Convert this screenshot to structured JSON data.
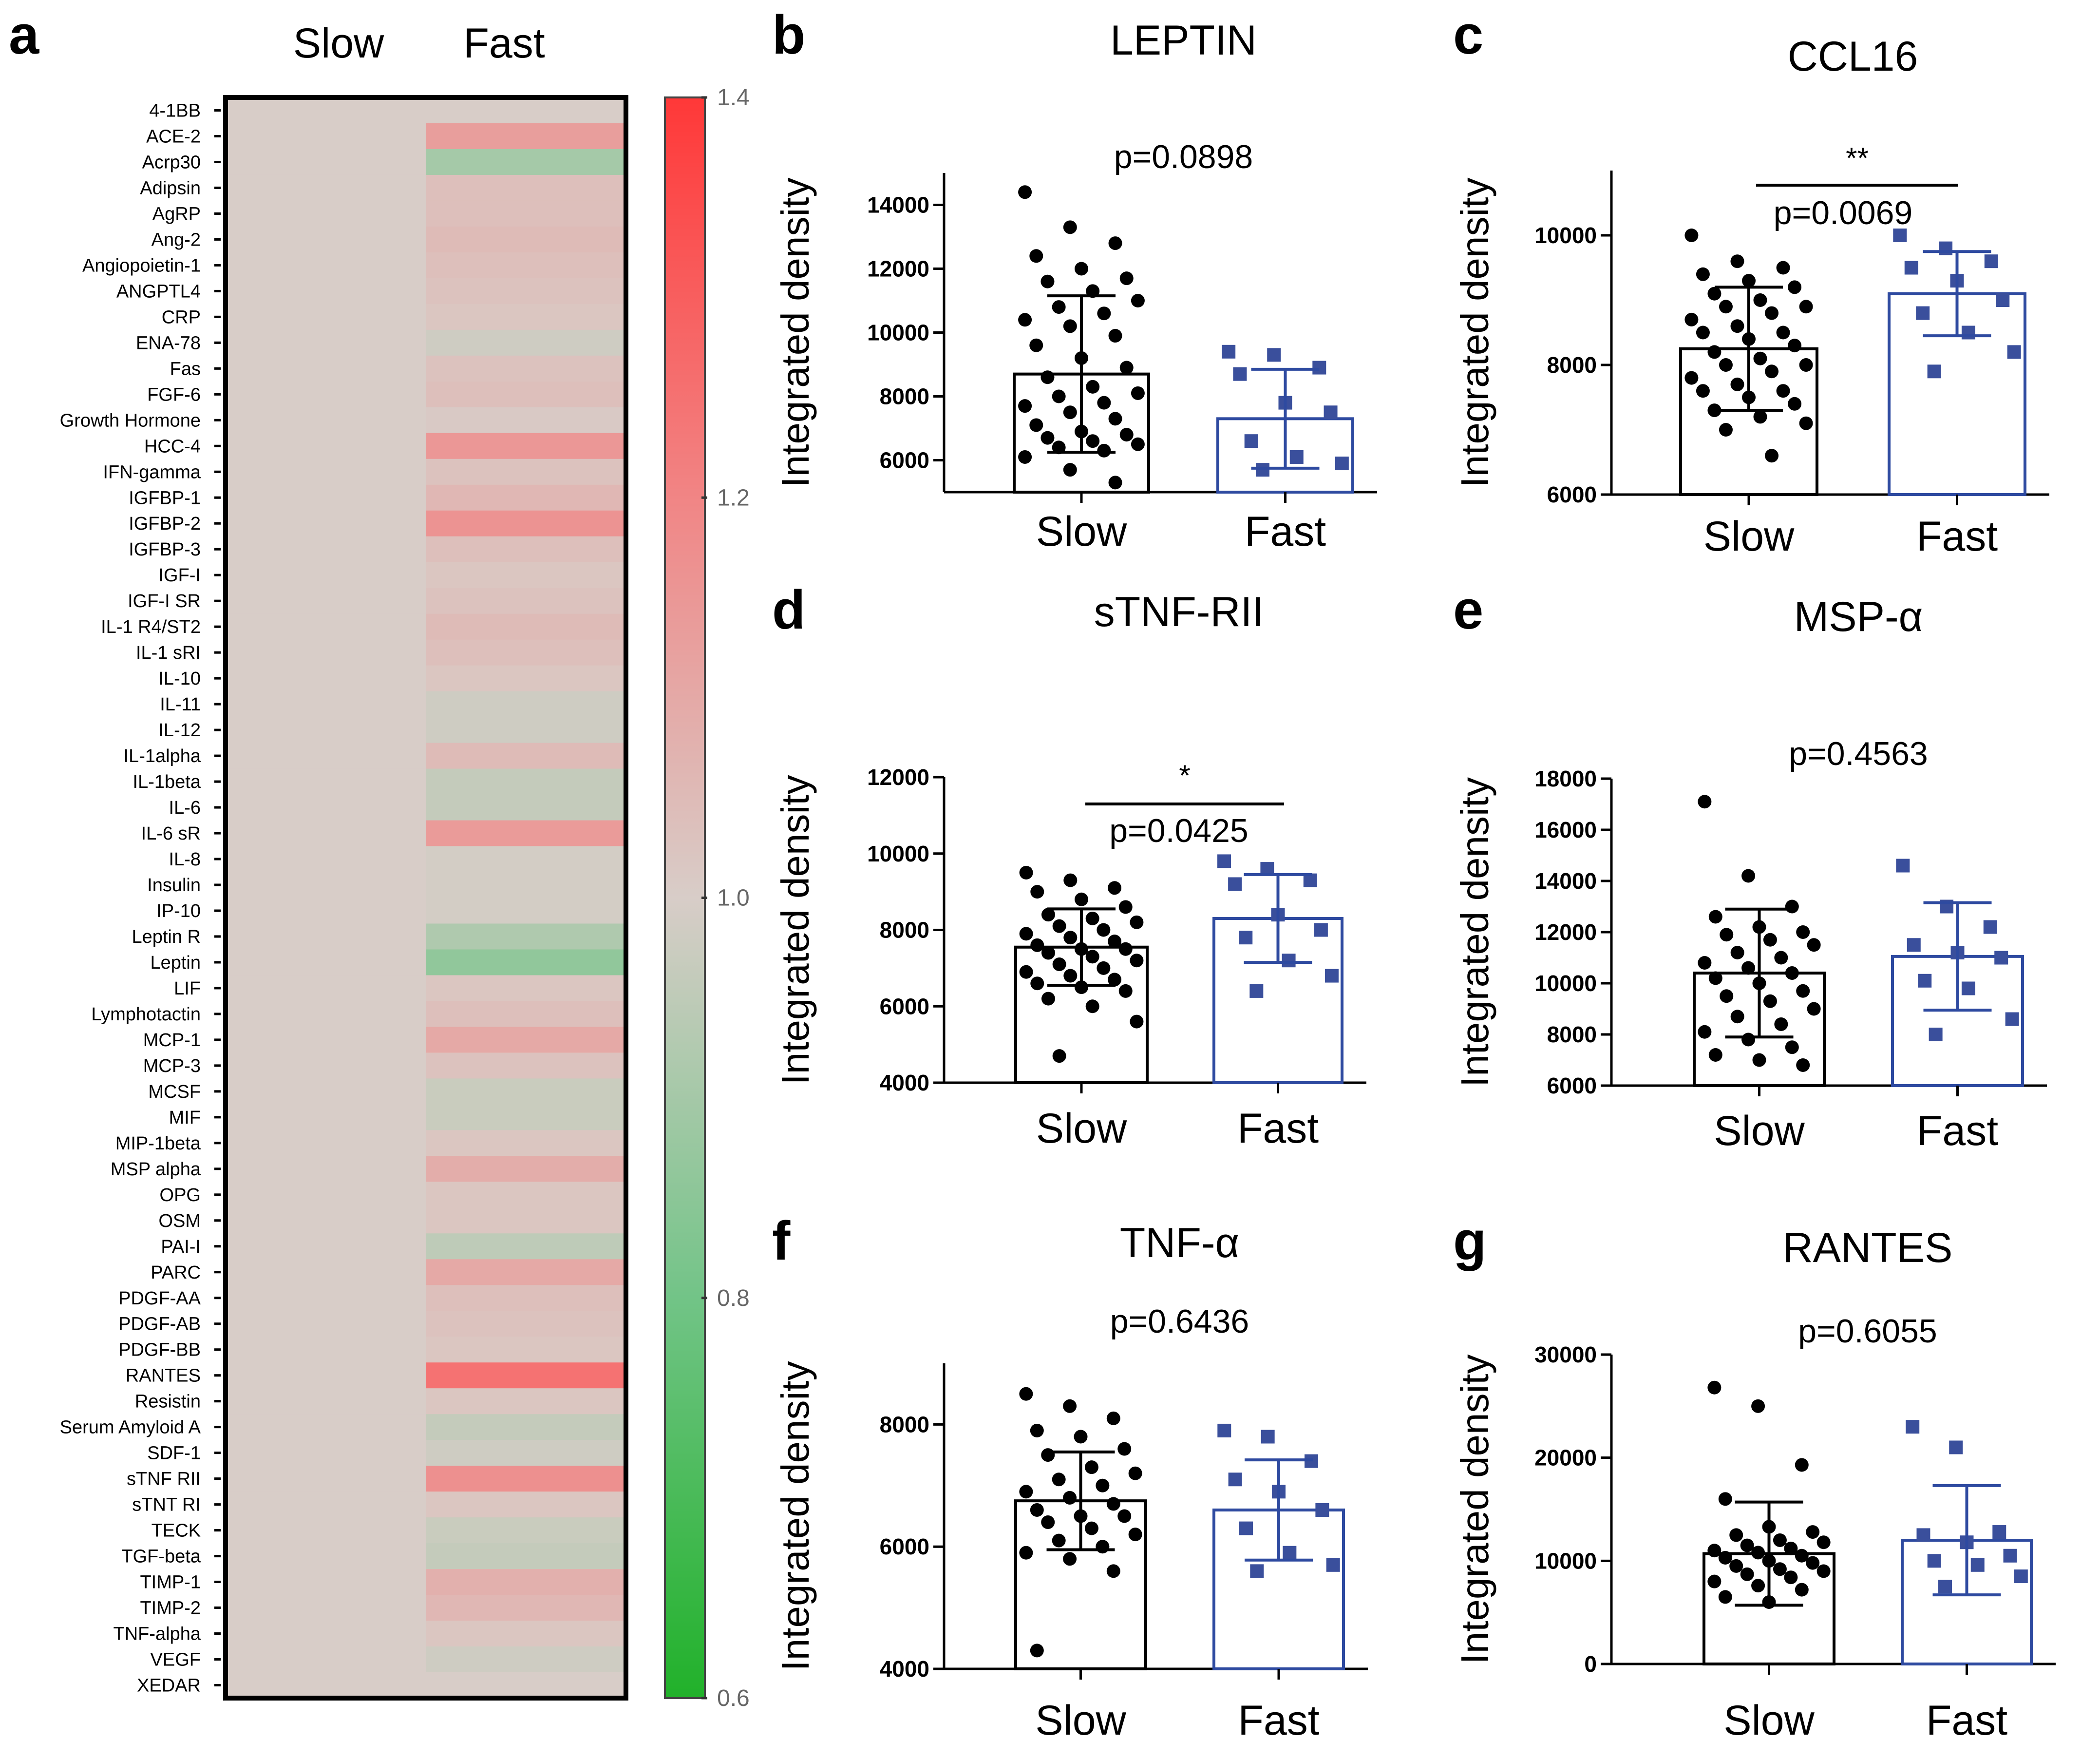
{
  "figure": {
    "panel_letters": [
      "a",
      "b",
      "c",
      "d",
      "e",
      "f",
      "g"
    ]
  },
  "chart_data": [
    {
      "type": "heatmap",
      "panel": "a",
      "columns": [
        "Slow",
        "Fast"
      ],
      "rows": [
        "4-1BB",
        "ACE-2",
        "Acrp30",
        "Adipsin",
        "AgRP",
        "Ang-2",
        "Angiopoietin-1",
        "ANGPTL4",
        "CRP",
        "ENA-78",
        "Fas",
        "FGF-6",
        "Growth Hormone",
        "HCC-4",
        "IFN-gamma",
        "IGFBP-1",
        "IGFBP-2",
        "IGFBP-3",
        "IGF-I",
        "IGF-I SR",
        "IL-1 R4/ST2",
        "IL-1 sRI",
        "IL-10",
        "IL-11",
        "IL-12",
        "IL-1alpha",
        "IL-1beta",
        "IL-6",
        "IL-6 sR",
        "IL-8",
        "Insulin",
        "IP-10",
        "Leptin R",
        "Leptin",
        "LIF",
        "Lymphotactin",
        "MCP-1",
        "MCP-3",
        "MCSF",
        "MIF",
        "MIP-1beta",
        "MSP alpha",
        "OPG",
        "OSM",
        "PAI-I",
        "PARC",
        "PDGF-AA",
        "PDGF-AB",
        "PDGF-BB",
        "RANTES",
        "Resistin",
        "Serum Amyloid A",
        "SDF-1",
        "sTNF RII",
        "sTNT RI",
        "TECK",
        "TGF-beta",
        "TIMP-1",
        "TIMP-2",
        "TNF-alpha",
        "VEGF",
        "XEDAR"
      ],
      "values_slow": [
        1.0,
        1.0,
        1.0,
        1.0,
        1.0,
        1.0,
        1.0,
        1.0,
        1.0,
        1.0,
        1.0,
        1.0,
        1.0,
        1.0,
        1.0,
        1.0,
        1.0,
        1.0,
        1.0,
        1.0,
        1.0,
        1.0,
        1.0,
        1.0,
        1.0,
        1.0,
        1.0,
        1.0,
        1.0,
        1.0,
        1.0,
        1.0,
        1.0,
        1.0,
        1.0,
        1.0,
        1.0,
        1.0,
        1.0,
        1.0,
        1.0,
        1.0,
        1.0,
        1.0,
        1.0,
        1.0,
        1.0,
        1.0,
        1.0,
        1.0,
        1.0,
        1.0,
        1.0,
        1.0,
        1.0,
        1.0,
        1.0,
        1.0,
        1.0,
        1.0,
        1.0,
        1.0
      ],
      "values_fast": [
        1.0,
        1.13,
        0.9,
        1.04,
        1.04,
        1.05,
        1.04,
        1.03,
        1.02,
        0.98,
        1.03,
        1.04,
        1.01,
        1.15,
        1.03,
        1.06,
        1.16,
        1.04,
        1.02,
        1.03,
        1.05,
        1.04,
        1.02,
        0.98,
        0.98,
        1.05,
        0.96,
        0.96,
        1.14,
        0.99,
        0.99,
        0.99,
        0.92,
        0.86,
        1.02,
        1.04,
        1.1,
        1.03,
        0.97,
        0.97,
        1.02,
        1.09,
        1.02,
        1.02,
        0.95,
        1.1,
        1.04,
        1.03,
        1.02,
        1.25,
        1.02,
        0.96,
        0.98,
        1.17,
        1.02,
        0.97,
        0.96,
        1.08,
        1.06,
        1.02,
        0.98,
        1.0
      ],
      "colorbar": {
        "ticks": [
          "1.4",
          "1.2",
          "1.0",
          "0.8",
          "0.6"
        ],
        "min": 0.6,
        "max": 1.4
      }
    },
    {
      "type": "bar",
      "panel": "b",
      "title": "LEPTIN",
      "categories": [
        "Slow",
        "Fast"
      ],
      "ylabel": "Integrated density",
      "ylim": [
        5000,
        15000
      ],
      "yticks": [
        "6000",
        "8000",
        "10000",
        "12000",
        "14000"
      ],
      "ytick_values": [
        6000,
        8000,
        10000,
        12000,
        14000
      ],
      "means": [
        8700,
        7300
      ],
      "sd": [
        2450,
        1550
      ],
      "pvalue": "p=0.0898",
      "significance": "",
      "points_slow": [
        14400,
        13300,
        12800,
        12400,
        12000,
        11700,
        11600,
        11300,
        11000,
        10800,
        10600,
        10400,
        10200,
        9900,
        9600,
        9200,
        8900,
        8600,
        8300,
        8100,
        8000,
        7800,
        7700,
        7500,
        7300,
        7100,
        6900,
        6800,
        6700,
        6600,
        6500,
        6400,
        6300,
        6100,
        5700,
        5300
      ],
      "points_fast": [
        9400,
        9300,
        8900,
        8700,
        7800,
        7500,
        6600,
        6100,
        5900,
        5700
      ]
    },
    {
      "type": "bar",
      "panel": "c",
      "title": "CCL16",
      "categories": [
        "Slow",
        "Fast"
      ],
      "ylabel": "Integrated density",
      "ylim": [
        6000,
        11000
      ],
      "yticks": [
        "6000",
        "8000",
        "10000"
      ],
      "ytick_values": [
        6000,
        8000,
        10000
      ],
      "means": [
        8250,
        9100
      ],
      "sd": [
        950,
        650
      ],
      "pvalue": "p=0.0069",
      "significance": "**",
      "points_slow": [
        10000,
        9600,
        9500,
        9400,
        9300,
        9200,
        9100,
        9000,
        8900,
        8900,
        8800,
        8700,
        8600,
        8500,
        8500,
        8400,
        8300,
        8200,
        8100,
        8000,
        8000,
        7900,
        7800,
        7700,
        7600,
        7600,
        7500,
        7400,
        7300,
        7200,
        7100,
        7000,
        6600
      ],
      "points_fast": [
        10000,
        9800,
        9600,
        9500,
        9300,
        9000,
        8800,
        8500,
        8200,
        7900
      ]
    },
    {
      "type": "bar",
      "panel": "d",
      "title": "sTNF-RII",
      "categories": [
        "Slow",
        "Fast"
      ],
      "ylabel": "Integrated density",
      "ylim": [
        4000,
        12000
      ],
      "yticks": [
        "4000",
        "6000",
        "8000",
        "10000",
        "12000"
      ],
      "ytick_values": [
        4000,
        6000,
        8000,
        10000,
        12000
      ],
      "means": [
        7550,
        8300
      ],
      "sd": [
        1000,
        1150
      ],
      "pvalue": "p=0.0425",
      "significance": "*",
      "points_slow": [
        9500,
        9300,
        9100,
        9000,
        8800,
        8600,
        8400,
        8300,
        8200,
        8100,
        8000,
        7900,
        7800,
        7700,
        7600,
        7500,
        7500,
        7400,
        7300,
        7200,
        7100,
        7000,
        6900,
        6800,
        6700,
        6600,
        6500,
        6400,
        6200,
        6000,
        5600,
        4700
      ],
      "points_fast": [
        9800,
        9600,
        9300,
        9200,
        8400,
        8000,
        7800,
        7200,
        6800,
        6400
      ]
    },
    {
      "type": "bar",
      "panel": "e",
      "title": "MSP-α",
      "categories": [
        "Slow",
        "Fast"
      ],
      "ylabel": "Integrated density",
      "ylim": [
        6000,
        18000
      ],
      "yticks": [
        "6000",
        "8000",
        "10000",
        "12000",
        "14000",
        "16000",
        "18000"
      ],
      "ytick_values": [
        6000,
        8000,
        10000,
        12000,
        14000,
        16000,
        18000
      ],
      "means": [
        10400,
        11050
      ],
      "sd": [
        2500,
        2100
      ],
      "pvalue": "p=0.4563",
      "significance": "",
      "points_slow": [
        17100,
        14200,
        13000,
        12600,
        12200,
        12000,
        11900,
        11700,
        11500,
        11200,
        11000,
        10800,
        10600,
        10400,
        10200,
        10000,
        9700,
        9500,
        9300,
        9000,
        8700,
        8400,
        8100,
        7800,
        7500,
        7200,
        7000,
        6800
      ],
      "points_fast": [
        14600,
        13000,
        12200,
        11500,
        11200,
        11000,
        10100,
        9800,
        8600,
        8000
      ]
    },
    {
      "type": "bar",
      "panel": "f",
      "title": "TNF-α",
      "categories": [
        "Slow",
        "Fast"
      ],
      "ylabel": "Integrated density",
      "ylim": [
        4000,
        9000
      ],
      "yticks": [
        "4000",
        "6000",
        "8000"
      ],
      "ytick_values": [
        4000,
        6000,
        8000
      ],
      "means": [
        6750,
        6600
      ],
      "sd": [
        800,
        820
      ],
      "pvalue": "p=0.6436",
      "significance": "",
      "points_slow": [
        8500,
        8300,
        8100,
        7900,
        7800,
        7600,
        7500,
        7300,
        7200,
        7100,
        7000,
        6900,
        6800,
        6700,
        6600,
        6500,
        6500,
        6400,
        6300,
        6200,
        6100,
        6000,
        5900,
        5800,
        5600,
        4300
      ],
      "points_fast": [
        7900,
        7800,
        7400,
        7100,
        6900,
        6600,
        6300,
        5900,
        5700,
        5600
      ]
    },
    {
      "type": "bar",
      "panel": "g",
      "title": "RANTES",
      "categories": [
        "Slow",
        "Fast"
      ],
      "ylabel": "Integrated density",
      "ylim": [
        0,
        30000
      ],
      "yticks": [
        "0",
        "10000",
        "20000",
        "30000"
      ],
      "ytick_values": [
        0,
        10000,
        20000,
        30000
      ],
      "means": [
        10700,
        12000
      ],
      "sd": [
        5000,
        5300
      ],
      "pvalue": "p=0.6055",
      "significance": "",
      "points_slow": [
        26800,
        25000,
        19300,
        16000,
        13300,
        12800,
        12500,
        12000,
        11800,
        11500,
        11200,
        11000,
        10800,
        10500,
        10300,
        10000,
        9800,
        9500,
        9200,
        9000,
        8700,
        8400,
        8000,
        7600,
        7200,
        6500,
        6000
      ],
      "points_fast": [
        23000,
        21000,
        12800,
        12500,
        11800,
        10500,
        10000,
        9600,
        8500,
        7500
      ]
    }
  ]
}
